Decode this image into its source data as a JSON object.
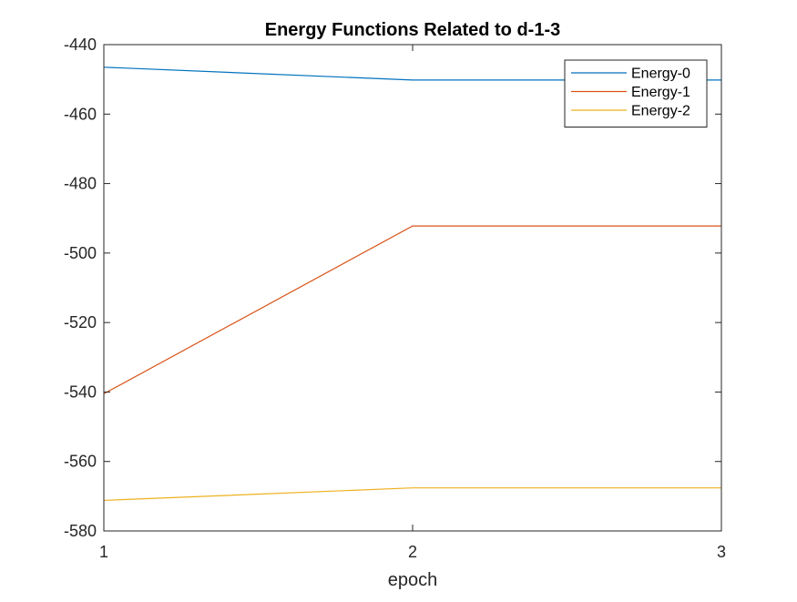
{
  "chart_data": {
    "type": "line",
    "title": "Energy Functions Related to d-1-3",
    "xlabel": "epoch",
    "ylabel": "",
    "x": [
      1,
      2,
      3
    ],
    "xlim": [
      1,
      3
    ],
    "ylim": [
      -580,
      -440
    ],
    "xticks": [
      1,
      2,
      3
    ],
    "yticks": [
      -580,
      -560,
      -540,
      -520,
      -500,
      -480,
      -460,
      -440
    ],
    "xtick_labels": [
      "1",
      "2",
      "3"
    ],
    "ytick_labels": [
      "-580",
      "-560",
      "-540",
      "-520",
      "-500",
      "-480",
      "-460",
      "-440"
    ],
    "grid": false,
    "legend_position": "top-right",
    "series": [
      {
        "name": "Energy-0",
        "color": "#0072BD",
        "values": [
          -446.5,
          -450.2,
          -450.2
        ]
      },
      {
        "name": "Energy-1",
        "color": "#D95319",
        "values": [
          -540.5,
          -492.2,
          -492.2
        ]
      },
      {
        "name": "Energy-2",
        "color": "#EDB120",
        "values": [
          -571.2,
          -567.6,
          -567.6
        ]
      }
    ]
  }
}
